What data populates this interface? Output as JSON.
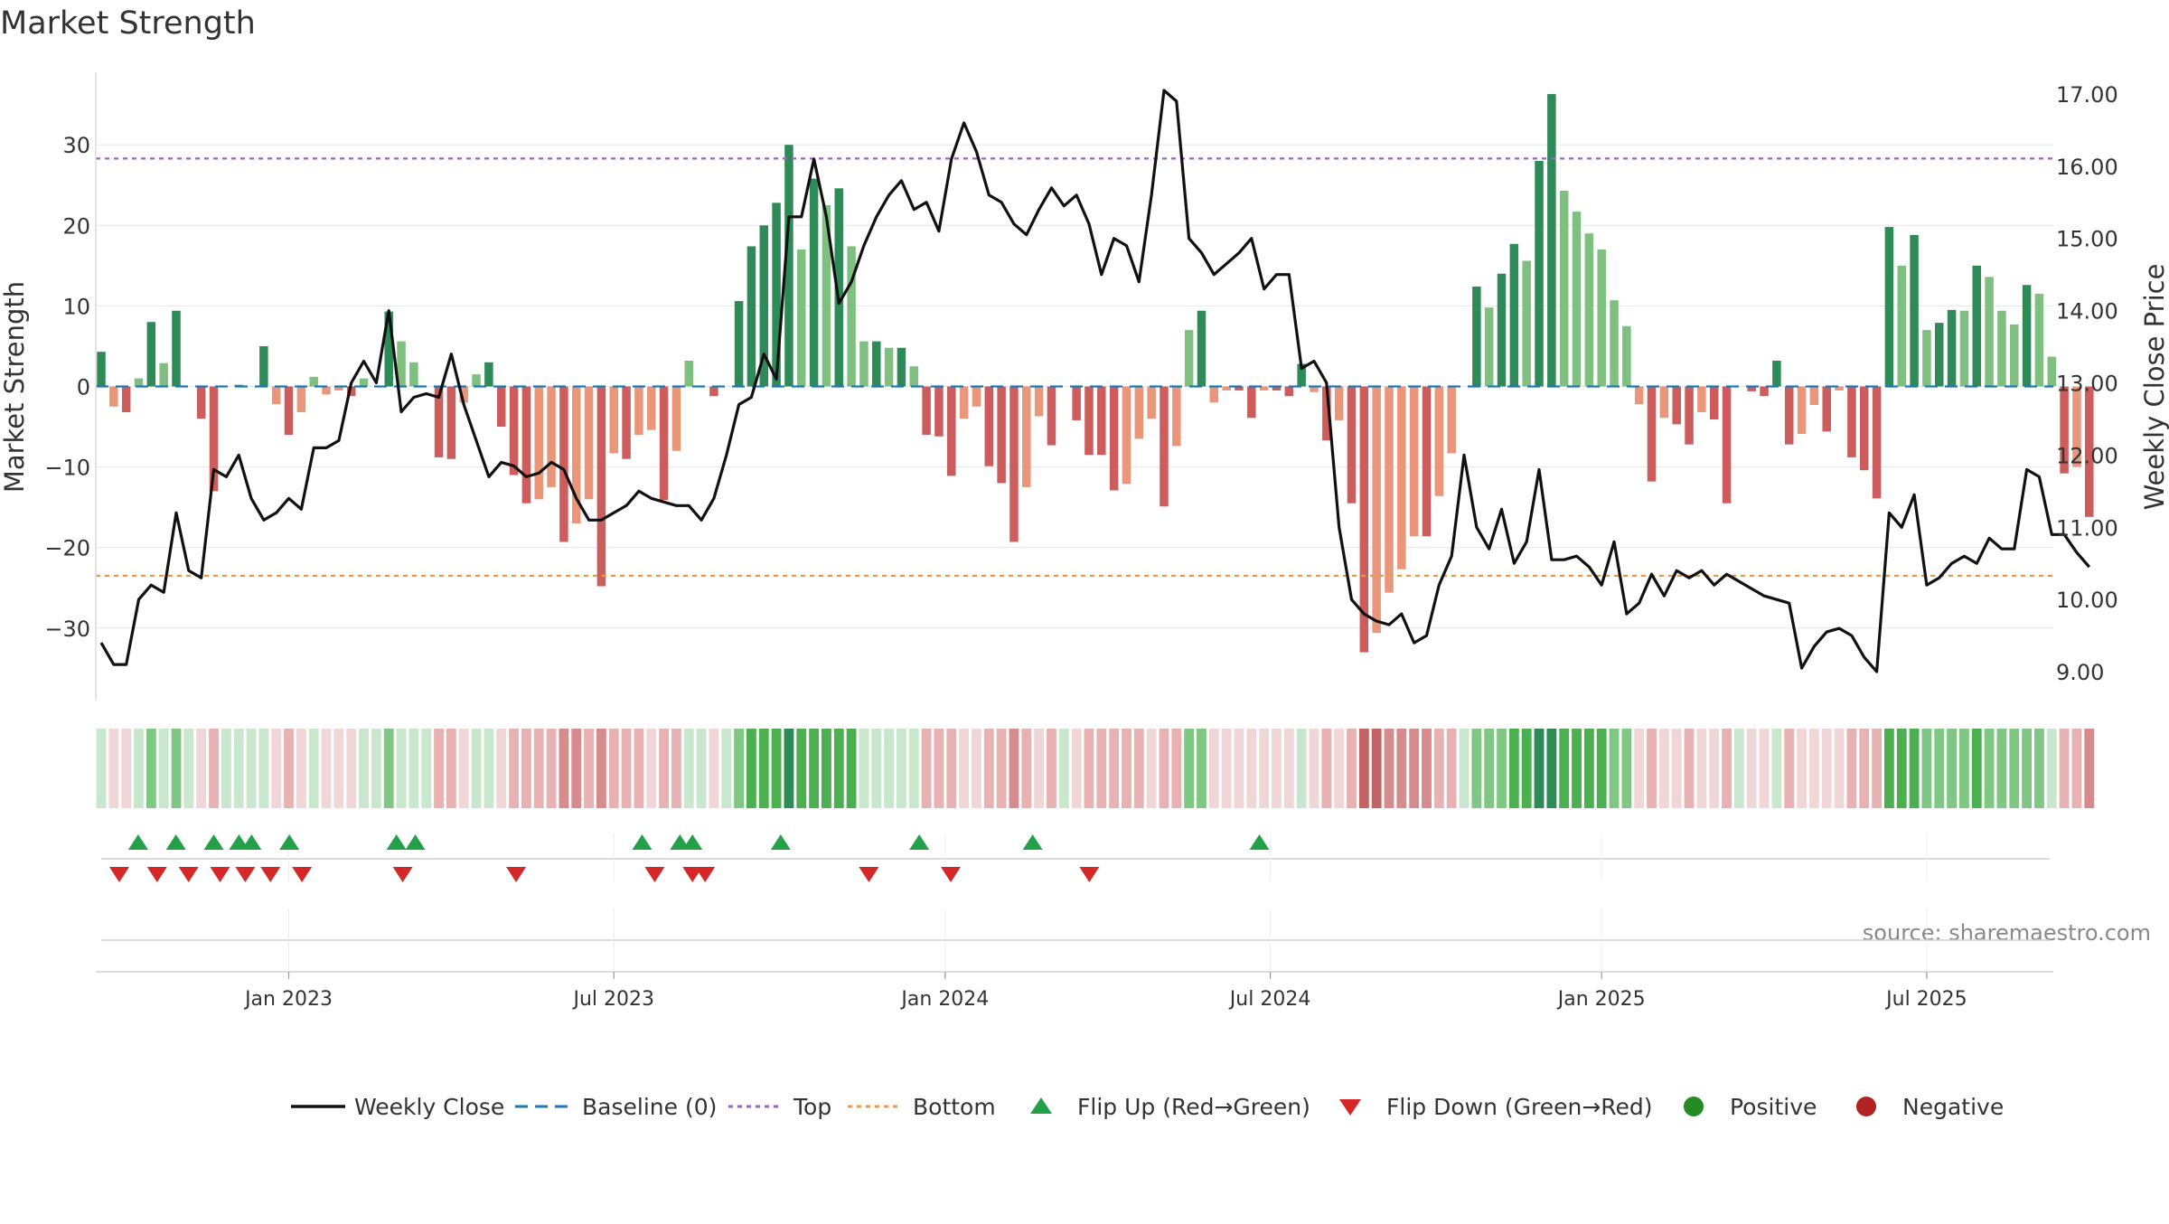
{
  "chart_data": {
    "type": "bar",
    "title": "Market Strength",
    "ylabel_left": "Market Strength",
    "ylabel_right": "Weekly Close Price",
    "source": "source: sharemaestro.com",
    "y_left_range": [
      -39,
      39
    ],
    "y_left_ticks": [
      30,
      20,
      10,
      0,
      -10,
      -20,
      -30
    ],
    "y_left_tick_labels": [
      "30",
      "20",
      "10",
      "0",
      "−10",
      "−20",
      "−30"
    ],
    "y_right_range": [
      8.6,
      17.3
    ],
    "y_right_ticks": [
      17,
      16,
      15,
      14,
      13,
      12,
      11,
      10,
      9
    ],
    "y_right_tick_labels": [
      "17.00",
      "16.00",
      "15.00",
      "14.00",
      "13.00",
      "12.00",
      "11.00",
      "10.00",
      "9.00"
    ],
    "top_line": 28.3,
    "bottom_line": -23.5,
    "x_ticks": [
      {
        "week": 15,
        "label": "Jan 2023"
      },
      {
        "week": 41,
        "label": "Jul 2023"
      },
      {
        "week": 67.5,
        "label": "Jan 2024"
      },
      {
        "week": 93.5,
        "label": "Jul 2024"
      },
      {
        "week": 120,
        "label": "Jan 2025"
      },
      {
        "week": 146,
        "label": "Jul 2025"
      }
    ],
    "strength": [
      4.3,
      -2.5,
      -3.2,
      1,
      8,
      2.9,
      9.4,
      0,
      -4,
      -13,
      0,
      0.2,
      0,
      5,
      -2.2,
      -6,
      -3.2,
      1.2,
      -1,
      -0.5,
      -1.2,
      1,
      0,
      9.3,
      5.6,
      3,
      0,
      -8.8,
      -9,
      -2,
      1.5,
      3,
      -5,
      -11,
      -14.5,
      -14,
      -12.5,
      -19.3,
      -17,
      -14,
      -24.8,
      -8.3,
      -9,
      -6,
      -5.4,
      -14.1,
      -8,
      3.2,
      0,
      -1.2,
      0,
      10.6,
      17.4,
      20,
      22.8,
      30,
      17,
      25.8,
      22.5,
      24.6,
      17.4,
      5.6,
      5.6,
      4.8,
      4.8,
      2.5,
      -6,
      -6.2,
      -11.1,
      -4,
      -2.5,
      -9.9,
      -12,
      -19.3,
      -12.5,
      -3.7,
      -7.3,
      0,
      -4.2,
      -8.5,
      -8.5,
      -12.9,
      -12.1,
      -6.5,
      -4,
      -14.9,
      -7.4,
      7,
      9.4,
      -2,
      -0.5,
      -0.5,
      -3.9,
      -0.5,
      -0.5,
      -1.2,
      2.8,
      -0.7,
      -6.7,
      -4.2,
      -14.5,
      -33,
      -30.6,
      -25.6,
      -22.7,
      -18.6,
      -18.6,
      -13.6,
      -8.3,
      0,
      12.4,
      9.8,
      14,
      17.7,
      15.6,
      28,
      36.3,
      24.3,
      21.7,
      19,
      17,
      10.7,
      7.5,
      -2.2,
      -11.8,
      -3.9,
      -4.7,
      -7.2,
      -3.2,
      -4.1,
      -14.5,
      0,
      -0.6,
      -1.2,
      3.2,
      -7.2,
      -5.9,
      -2.3,
      -5.6,
      -0.5,
      -8.8,
      -10.4,
      -13.9,
      19.8,
      15,
      18.8,
      7,
      7.9,
      9.5,
      9.4,
      15,
      13.6,
      9.4,
      7.7,
      12.6,
      11.5,
      3.7,
      -10.8,
      -10,
      -16.2
    ],
    "close": [
      9.4,
      9.1,
      9.1,
      10,
      10.2,
      10.1,
      11.2,
      10.4,
      10.3,
      11.8,
      11.7,
      12,
      11.4,
      11.1,
      11.2,
      11.4,
      11.25,
      12.1,
      12.1,
      12.2,
      13,
      13.3,
      13,
      14,
      12.6,
      12.8,
      12.85,
      12.8,
      13.4,
      12.7,
      12.2,
      11.7,
      11.9,
      11.85,
      11.7,
      11.75,
      11.9,
      11.8,
      11.4,
      11.1,
      11.1,
      11.2,
      11.3,
      11.5,
      11.4,
      11.35,
      11.3,
      11.3,
      11.1,
      11.4,
      12,
      12.7,
      12.8,
      13.4,
      13.05,
      15.3,
      15.3,
      16.1,
      15.3,
      14.1,
      14.4,
      14.9,
      15.3,
      15.6,
      15.8,
      15.4,
      15.5,
      15.1,
      16.1,
      16.6,
      16.2,
      15.6,
      15.5,
      15.2,
      15.05,
      15.4,
      15.7,
      15.45,
      15.6,
      15.2,
      14.5,
      15,
      14.9,
      14.4,
      15.6,
      17.05,
      16.9,
      15,
      14.8,
      14.5,
      14.65,
      14.8,
      15,
      14.3,
      14.5,
      14.5,
      13.2,
      13.3,
      13,
      11,
      10,
      9.8,
      9.7,
      9.65,
      9.8,
      9.4,
      9.5,
      10.2,
      10.6,
      12,
      11,
      10.7,
      11.25,
      10.5,
      10.8,
      11.8,
      10.55,
      10.55,
      10.6,
      10.45,
      10.2,
      10.8,
      9.8,
      9.95,
      10.35,
      10.05,
      10.4,
      10.3,
      10.4,
      10.2,
      10.35,
      10.25,
      10.15,
      10.05,
      10,
      9.95,
      9.05,
      9.35,
      9.55,
      9.6,
      9.5,
      9.2,
      9,
      11.2,
      11,
      11.45,
      10.2,
      10.3,
      10.5,
      10.6,
      10.5,
      10.85,
      10.7,
      10.7,
      11.8,
      11.7,
      10.9,
      10.9,
      10.65,
      10.45
    ],
    "flip_up_weeks": [
      2,
      5,
      8,
      10,
      11,
      14,
      22.5,
      24,
      42,
      45,
      46,
      53,
      64,
      73,
      91
    ],
    "flip_down_weeks": [
      0.5,
      3.5,
      6,
      8.5,
      10.5,
      12.5,
      15,
      23,
      32,
      43,
      46,
      47,
      60,
      66.5,
      77.5
    ],
    "legend": [
      {
        "label": "Weekly Close",
        "kind": "solid",
        "color": "#111111"
      },
      {
        "label": "Baseline (0)",
        "kind": "dash",
        "color": "#1f77b4"
      },
      {
        "label": "Top",
        "kind": "dot",
        "color": "#9467bd"
      },
      {
        "label": "Bottom",
        "kind": "dot",
        "color": "#e39b52"
      },
      {
        "label": "Flip Up (Red→Green)",
        "kind": "tri-up",
        "color": "#23a048"
      },
      {
        "label": "Flip Down (Green→Red)",
        "kind": "tri-down",
        "color": "#d62728"
      },
      {
        "label": "Positive",
        "kind": "circle",
        "color": "#228b22"
      },
      {
        "label": "Negative",
        "kind": "circle",
        "color": "#b22222"
      }
    ],
    "colors": {
      "pos_strong": "#2e8b57",
      "pos_light": "#7fbf7f",
      "neg_strong": "#cd5c5c",
      "neg_light": "#e9967a",
      "close_line": "#111111",
      "baseline": "#1f77b4",
      "top": "#9467bd",
      "bottom": "#e39b52",
      "flip_up": "#23a048",
      "flip_down": "#d62728"
    }
  }
}
